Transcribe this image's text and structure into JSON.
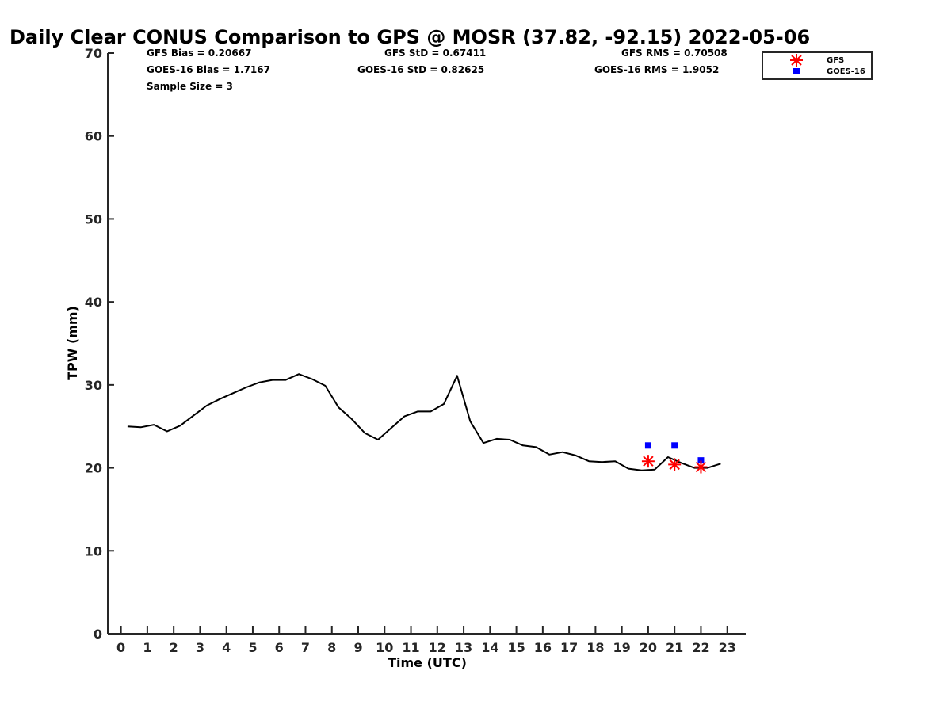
{
  "chart_data": {
    "type": "line",
    "title": "Daily Clear CONUS Comparison to GPS @ MOSR (37.82, -92.15) 2022-05-06",
    "xlabel": "Time (UTC)",
    "ylabel": "TPW (mm)",
    "xlim": [
      -0.5,
      23.7
    ],
    "ylim": [
      0,
      70
    ],
    "xticks": [
      0,
      1,
      2,
      3,
      4,
      5,
      6,
      7,
      8,
      9,
      10,
      11,
      12,
      13,
      14,
      15,
      16,
      17,
      18,
      19,
      20,
      21,
      22,
      23
    ],
    "yticks": [
      0,
      10,
      20,
      30,
      40,
      50,
      60,
      70
    ],
    "stats": {
      "gfs_bias": "GFS Bias = 0.20667",
      "gfs_std": "GFS StD = 0.67411",
      "gfs_rms": "GFS RMS = 0.70508",
      "goes_bias": "GOES-16 Bias = 1.7167",
      "goes_std": "GOES-16 StD = 0.82625",
      "goes_rms": "GOES-16 RMS = 1.9052",
      "sample_size": "Sample Size = 3"
    },
    "legend": {
      "position": "top-right",
      "items": [
        {
          "label": "GFS",
          "marker": "asterisk",
          "color": "#ff0000"
        },
        {
          "label": "GOES-16",
          "marker": "square",
          "color": "#0000ff"
        }
      ]
    },
    "series": [
      {
        "name": "GPS",
        "style": "line",
        "color": "#000000",
        "x": [
          0.25,
          0.75,
          1.25,
          1.75,
          2.25,
          2.75,
          3.25,
          3.75,
          4.25,
          4.75,
          5.25,
          5.75,
          6.25,
          6.75,
          7.25,
          7.75,
          8.25,
          8.75,
          9.25,
          9.75,
          10.25,
          10.75,
          11.25,
          11.75,
          12.25,
          12.75,
          13.25,
          13.75,
          14.25,
          14.75,
          15.25,
          15.75,
          16.25,
          16.75,
          17.25,
          17.75,
          18.25,
          18.75,
          19.25,
          19.75,
          20.25,
          20.75,
          21.25,
          21.75,
          22.25,
          22.75
        ],
        "values": [
          25.0,
          24.9,
          25.2,
          24.4,
          25.1,
          26.3,
          27.5,
          28.3,
          29.0,
          29.7,
          30.3,
          30.6,
          30.6,
          31.3,
          30.7,
          29.9,
          27.3,
          25.9,
          24.2,
          23.4,
          24.8,
          26.2,
          26.8,
          26.8,
          27.7,
          31.1,
          25.6,
          23.0,
          23.5,
          23.4,
          22.7,
          22.5,
          21.6,
          21.9,
          21.5,
          20.8,
          20.7,
          20.8,
          19.9,
          19.7,
          19.8,
          21.3,
          20.6,
          20.0,
          20.0,
          20.5
        ]
      },
      {
        "name": "GFS",
        "style": "asterisk",
        "color": "#ff0000",
        "x": [
          20,
          21,
          22
        ],
        "values": [
          20.8,
          20.4,
          20.1
        ]
      },
      {
        "name": "GOES-16",
        "style": "square",
        "color": "#0000ff",
        "x": [
          20,
          21,
          22
        ],
        "values": [
          22.7,
          22.7,
          20.9
        ]
      }
    ]
  }
}
